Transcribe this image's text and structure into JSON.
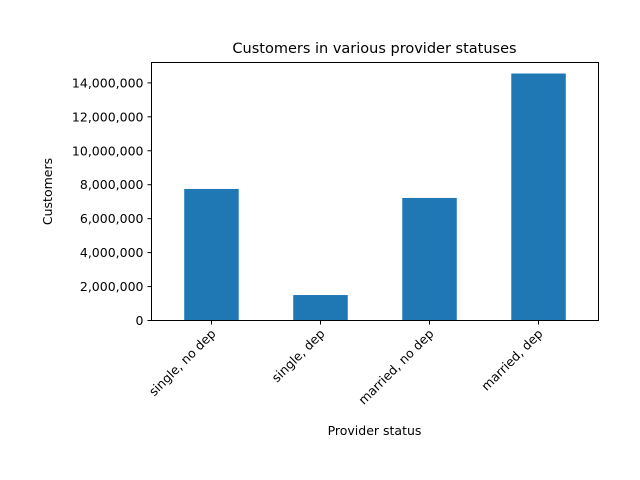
{
  "chart_data": {
    "type": "bar",
    "title": "Customers in various provider statuses",
    "xlabel": "Provider status",
    "ylabel": "Customers",
    "categories": [
      "single, no dep",
      "single, dep",
      "married, no dep",
      "married, dep"
    ],
    "values": [
      7750000,
      1500000,
      7220000,
      14550000
    ],
    "ylim": [
      0,
      15200000
    ],
    "yticks": [
      0,
      2000000,
      4000000,
      6000000,
      8000000,
      10000000,
      12000000,
      14000000
    ],
    "ytick_labels": [
      "0",
      "2,000,000",
      "4,000,000",
      "6,000,000",
      "8,000,000",
      "10,000,000",
      "12,000,000",
      "14,000,000"
    ],
    "bar_color": "#1f77b4",
    "grid": false,
    "legend": "none"
  }
}
